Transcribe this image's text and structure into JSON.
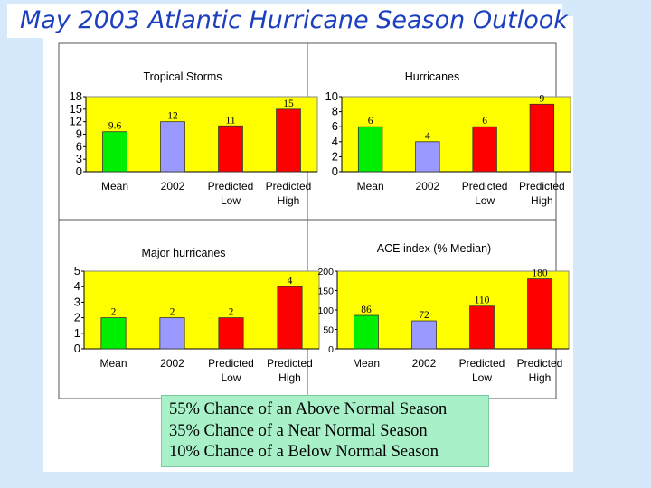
{
  "page": {
    "title": "May 2003 Atlantic Hurricane Season Outlook",
    "colors": {
      "title_text": "#1b3fbf",
      "background": "#d5e9fb",
      "plot_area": "#ffff00",
      "note_box": "#a8f0c8"
    }
  },
  "chart_data": [
    {
      "type": "bar",
      "title": "Tropical Storms",
      "categories": [
        "Mean",
        "2002",
        "Predicted Low",
        "Predicted High"
      ],
      "values": [
        9.6,
        12,
        11,
        15
      ],
      "value_labels": [
        "9.6",
        "12",
        "11",
        "15"
      ],
      "bar_colors": [
        "#00ee00",
        "#9999ff",
        "#ff0000",
        "#ff0000"
      ],
      "ylim": [
        0,
        18
      ],
      "yticks": [
        0,
        3,
        6,
        9,
        12,
        15,
        18
      ],
      "xlabel": "",
      "ylabel": "",
      "grid": false,
      "plot_background": "#ffff00"
    },
    {
      "type": "bar",
      "title": "Hurricanes",
      "categories": [
        "Mean",
        "2002",
        "Predicted Low",
        "Predicted High"
      ],
      "values": [
        6,
        4,
        6,
        9
      ],
      "value_labels": [
        "6",
        "4",
        "6",
        "9"
      ],
      "bar_colors": [
        "#00ee00",
        "#9999ff",
        "#ff0000",
        "#ff0000"
      ],
      "ylim": [
        0,
        10
      ],
      "yticks": [
        0,
        2,
        4,
        6,
        8,
        10
      ],
      "xlabel": "",
      "ylabel": "",
      "grid": false,
      "plot_background": "#ffff00"
    },
    {
      "type": "bar",
      "title": "Major hurricanes",
      "categories": [
        "Mean",
        "2002",
        "Predicted Low",
        "Predicted High"
      ],
      "values": [
        2,
        2,
        2,
        4
      ],
      "value_labels": [
        "2",
        "2",
        "2",
        "4"
      ],
      "bar_colors": [
        "#00ee00",
        "#9999ff",
        "#ff0000",
        "#ff0000"
      ],
      "ylim": [
        0,
        5
      ],
      "yticks": [
        0,
        1,
        2,
        3,
        4,
        5
      ],
      "xlabel": "",
      "ylabel": "",
      "grid": false,
      "plot_background": "#ffff00"
    },
    {
      "type": "bar",
      "title": "ACE index (% Median)",
      "categories": [
        "Mean",
        "2002",
        "Predicted Low",
        "Predicted High"
      ],
      "values": [
        86,
        72,
        110,
        180
      ],
      "value_labels": [
        "86",
        "72",
        "110",
        "180"
      ],
      "bar_colors": [
        "#00ee00",
        "#9999ff",
        "#ff0000",
        "#ff0000"
      ],
      "ylim": [
        0,
        200
      ],
      "yticks": [
        0,
        50,
        100,
        150,
        200
      ],
      "xlabel": "",
      "ylabel": "",
      "grid": false,
      "plot_background": "#ffff00"
    }
  ],
  "outlook": {
    "lines": [
      "55% Chance of an Above Normal Season",
      "35% Chance of a Near Normal Season",
      "10% Chance of a Below Normal Season"
    ]
  }
}
